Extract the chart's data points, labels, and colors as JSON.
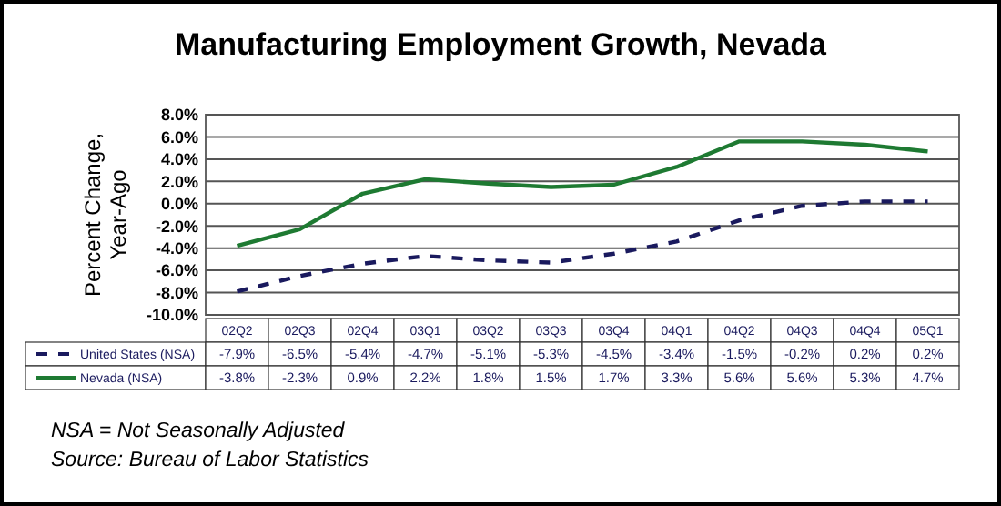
{
  "chart_data": {
    "type": "line",
    "title": "Manufacturing Employment Growth, Nevada",
    "ylabel": "Percent Change, Year-Ago",
    "categories": [
      "02Q2",
      "02Q3",
      "02Q4",
      "03Q1",
      "03Q2",
      "03Q3",
      "03Q4",
      "04Q1",
      "04Q2",
      "04Q3",
      "04Q4",
      "05Q1"
    ],
    "series": [
      {
        "name": "United States (NSA)",
        "color": "#1a1a5e",
        "line_style": "dashed",
        "values": [
          -7.9,
          -6.5,
          -5.4,
          -4.7,
          -5.1,
          -5.3,
          -4.5,
          -3.4,
          -1.5,
          -0.2,
          0.2,
          0.2
        ],
        "value_labels": [
          "-7.9%",
          "-6.5%",
          "-5.4%",
          "-4.7%",
          "-5.1%",
          "-5.3%",
          "-4.5%",
          "-3.4%",
          "-1.5%",
          "-0.2%",
          "0.2%",
          "0.2%"
        ]
      },
      {
        "name": "Nevada (NSA)",
        "color": "#1e7a32",
        "line_style": "solid",
        "values": [
          -3.8,
          -2.3,
          0.9,
          2.2,
          1.8,
          1.5,
          1.7,
          3.3,
          5.6,
          5.6,
          5.3,
          4.7
        ],
        "value_labels": [
          "-3.8%",
          "-2.3%",
          "0.9%",
          "2.2%",
          "1.8%",
          "1.5%",
          "1.7%",
          "3.3%",
          "5.6%",
          "5.6%",
          "5.3%",
          "4.7%"
        ]
      }
    ],
    "ylim": [
      -10,
      8
    ],
    "yticks": [
      {
        "value": -10,
        "label": "-10.0%"
      },
      {
        "value": -8,
        "label": "-8.0%"
      },
      {
        "value": -6,
        "label": "-6.0%"
      },
      {
        "value": -4,
        "label": "-4.0%"
      },
      {
        "value": -2,
        "label": "-2.0%"
      },
      {
        "value": 0,
        "label": "0.0%"
      },
      {
        "value": 2,
        "label": "2.0%"
      },
      {
        "value": 4,
        "label": "4.0%"
      },
      {
        "value": 6,
        "label": "6.0%"
      },
      {
        "value": 8,
        "label": "8.0%"
      }
    ],
    "grid": "y",
    "legend": "bottom",
    "marker": "none",
    "annotations": [
      "NSA = Not Seasonally Adjusted",
      "Source: Bureau of Labor Statistics"
    ]
  }
}
